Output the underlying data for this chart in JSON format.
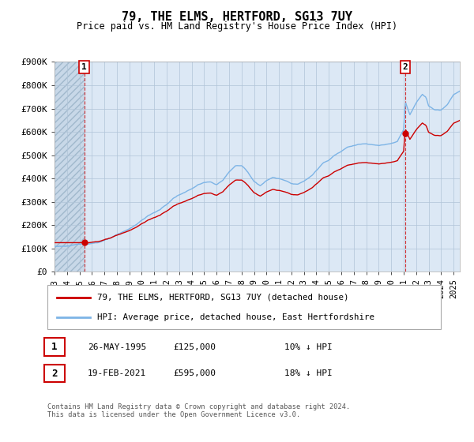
{
  "title": "79, THE ELMS, HERTFORD, SG13 7UY",
  "subtitle": "Price paid vs. HM Land Registry's House Price Index (HPI)",
  "legend_label1": "79, THE ELMS, HERTFORD, SG13 7UY (detached house)",
  "legend_label2": "HPI: Average price, detached house, East Hertfordshire",
  "annotation1_date": "26-MAY-1995",
  "annotation1_price": 125000,
  "annotation1_pct": "10% ↓ HPI",
  "annotation2_date": "19-FEB-2021",
  "annotation2_price": 595000,
  "annotation2_pct": "18% ↓ HPI",
  "footer": "Contains HM Land Registry data © Crown copyright and database right 2024.\nThis data is licensed under the Open Government Licence v3.0.",
  "hpi_color": "#7db4e6",
  "price_color": "#cc0000",
  "annotation_color": "#cc0000",
  "background_color": "#dce8f5",
  "grid_color": "#b0c4d8",
  "ylim": [
    0,
    900000
  ],
  "xlim_start": 1993.0,
  "xlim_end": 2025.5,
  "yticks": [
    0,
    100000,
    200000,
    300000,
    400000,
    500000,
    600000,
    700000,
    800000,
    900000
  ],
  "ytick_labels": [
    "£0",
    "£100K",
    "£200K",
    "£300K",
    "£400K",
    "£500K",
    "£600K",
    "£700K",
    "£800K",
    "£900K"
  ],
  "xticks": [
    1993,
    1994,
    1995,
    1996,
    1997,
    1998,
    1999,
    2000,
    2001,
    2002,
    2003,
    2004,
    2005,
    2006,
    2007,
    2008,
    2009,
    2010,
    2011,
    2012,
    2013,
    2014,
    2015,
    2016,
    2017,
    2018,
    2019,
    2020,
    2021,
    2022,
    2023,
    2024,
    2025
  ],
  "ann1_x": 1995.38,
  "ann1_y": 125000,
  "ann2_x": 2021.12,
  "ann2_y": 595000
}
